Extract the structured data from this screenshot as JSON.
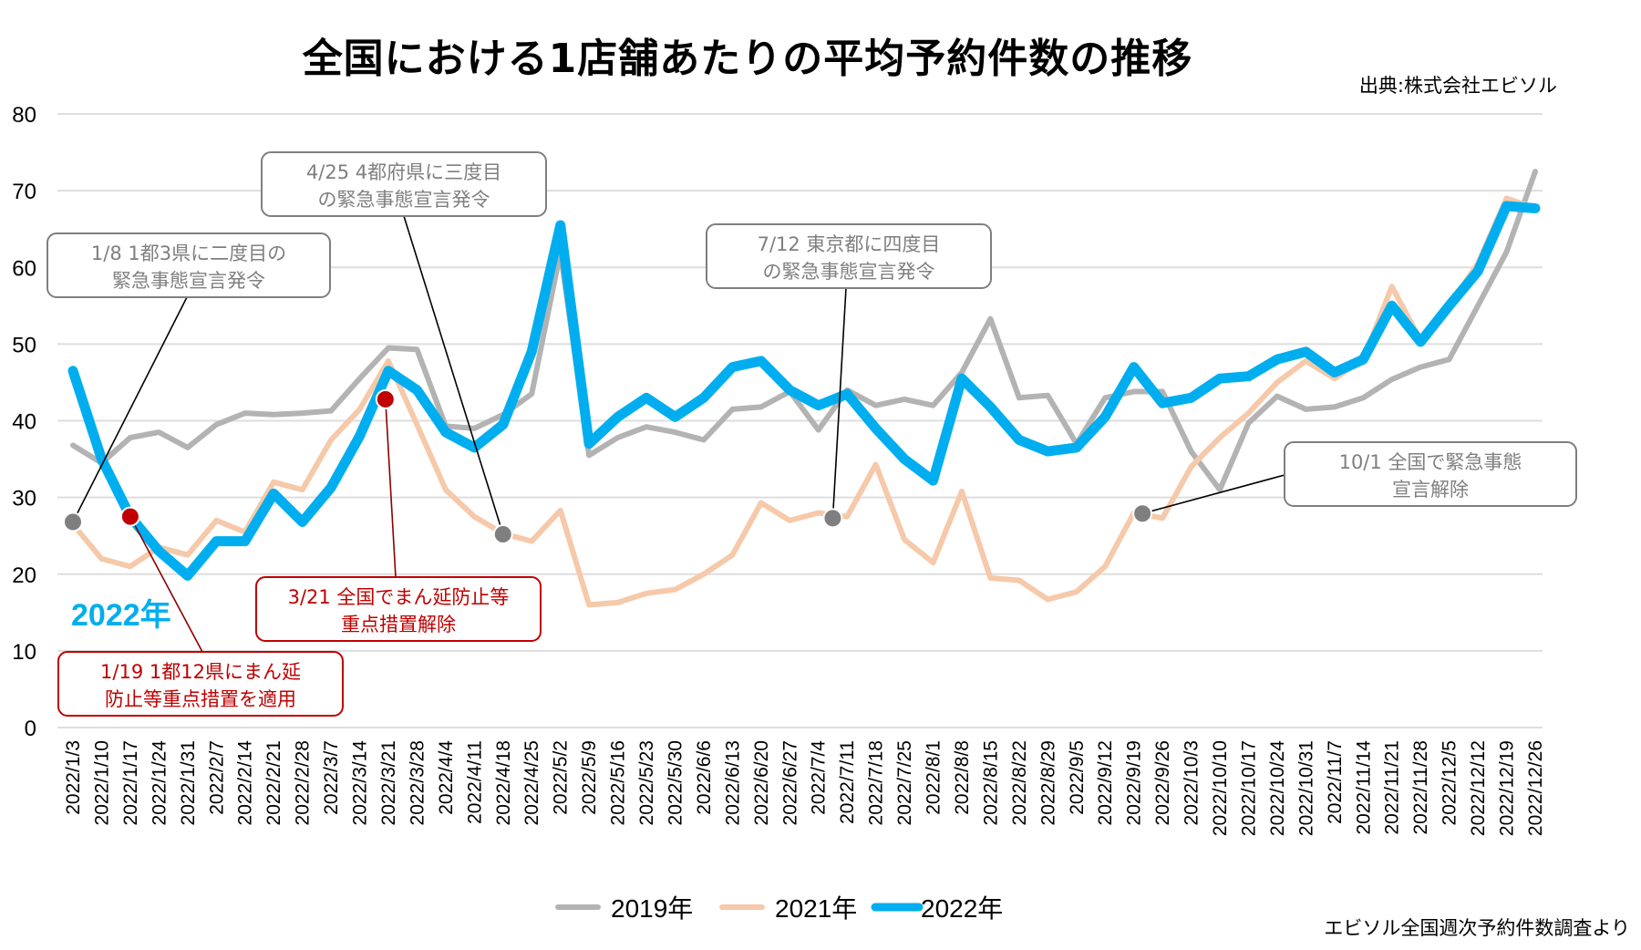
{
  "title": "全国における1店舗あたりの平均予約件数の推移",
  "source": "出典:株式会社エビソル",
  "footnote": "エビソル全国週次予約件数調査より",
  "colors": {
    "s2019": "#b3b3b3",
    "s2021": "#f5c9a9",
    "s2022": "#00aeef",
    "annotation_gray": "#7f7f7f",
    "annotation_red": "#c00000",
    "marker_gray": "#7f7f7f",
    "marker_red": "#c00000",
    "grid": "#dedede"
  },
  "chart_data": {
    "type": "line",
    "title": "全国における1店舗あたりの平均予約件数の推移",
    "xlabel": "",
    "ylabel": "",
    "ylim": [
      0,
      80
    ],
    "yticks": [
      0,
      10,
      20,
      30,
      40,
      50,
      60,
      70,
      80
    ],
    "grid": true,
    "legend_position": "bottom-center",
    "x": [
      "2022/1/3",
      "2022/1/10",
      "2022/1/17",
      "2022/1/24",
      "2022/1/31",
      "2022/2/7",
      "2022/2/14",
      "2022/2/21",
      "2022/2/28",
      "2022/3/7",
      "2022/3/14",
      "2022/3/21",
      "2022/3/28",
      "2022/4/4",
      "2022/4/11",
      "2022/4/18",
      "2022/4/25",
      "2022/5/2",
      "2022/5/9",
      "2022/5/16",
      "2022/5/23",
      "2022/5/30",
      "2022/6/6",
      "2022/6/13",
      "2022/6/20",
      "2022/6/27",
      "2022/7/4",
      "2022/7/11",
      "2022/7/18",
      "2022/7/25",
      "2022/8/1",
      "2022/8/8",
      "2022/8/15",
      "2022/8/22",
      "2022/8/29",
      "2022/9/5",
      "2022/9/12",
      "2022/9/19",
      "2022/9/26",
      "2022/10/3",
      "2022/10/10",
      "2022/10/17",
      "2022/10/24",
      "2022/10/31",
      "2022/11/7",
      "2022/11/14",
      "2022/11/21",
      "2022/11/28",
      "2022/12/5",
      "2022/12/12",
      "2022/12/19",
      "2022/12/26"
    ],
    "series": [
      {
        "name": "2019年",
        "key": "s2019",
        "values": [
          36.8,
          34.5,
          37.8,
          38.5,
          36.5,
          39.5,
          41,
          40.8,
          41,
          41.3,
          45.5,
          49.5,
          49.3,
          39.3,
          39,
          40.8,
          43.5,
          62,
          35.5,
          37.8,
          39.2,
          38.5,
          37.5,
          41.5,
          41.8,
          43.8,
          38.8,
          44,
          42,
          42.8,
          42,
          46.3,
          53.3,
          43,
          43.3,
          37,
          43,
          43.8,
          43.8,
          36,
          31,
          39.7,
          43.2,
          41.5,
          41.8,
          43,
          45.4,
          47,
          48,
          55,
          62,
          72.5
        ]
      },
      {
        "name": "2021年",
        "key": "s2021",
        "values": [
          26.5,
          22,
          21,
          23.5,
          22.5,
          27,
          25.5,
          32,
          31,
          37.5,
          41.5,
          47.8,
          39.5,
          31,
          27.5,
          25.3,
          24.3,
          28.3,
          16,
          16.3,
          17.5,
          18,
          20,
          22.5,
          29.3,
          27,
          28,
          27.5,
          34.3,
          24.5,
          21.5,
          30.8,
          19.5,
          19.2,
          16.7,
          17.7,
          21,
          28,
          27.3,
          34,
          37.8,
          41,
          45,
          47.8,
          45.5,
          48,
          57.5,
          50.5,
          55,
          60.5,
          69,
          67.7
        ]
      },
      {
        "name": "2022年",
        "key": "s2022",
        "values": [
          46.5,
          35,
          27.5,
          23,
          19.8,
          24.3,
          24.3,
          30.5,
          26.8,
          31.3,
          38,
          46.5,
          44,
          38.5,
          36.5,
          39.5,
          49,
          65.5,
          37,
          40.5,
          43,
          40.5,
          43,
          47,
          47.8,
          44,
          42,
          43.5,
          39,
          35,
          32.2,
          45.5,
          41.8,
          37.5,
          36,
          36.5,
          40.5,
          47,
          42.3,
          43,
          45.5,
          45.8,
          48,
          49,
          46.3,
          48,
          55,
          50.3,
          55,
          59.5,
          68,
          67.7
        ]
      }
    ],
    "series_label": "2022年",
    "annotations": [
      {
        "id": "a1",
        "style": "gray",
        "lines": [
          "1/8  1都3県に二度目の",
          "緊急事態宣言発令"
        ],
        "marker": {
          "index": 0,
          "value": 26.8,
          "color": "gray"
        }
      },
      {
        "id": "a2",
        "style": "red",
        "lines": [
          "1/19  1都12県にまん延",
          "防止等重点措置を適用"
        ],
        "marker": {
          "index": 2,
          "value": 27.5,
          "color": "red"
        }
      },
      {
        "id": "a3",
        "style": "red",
        "lines": [
          "3/21  全国でまん延防止等",
          "重点措置解除"
        ],
        "marker": {
          "index": 10.9,
          "value": 42.8,
          "color": "red"
        }
      },
      {
        "id": "a4",
        "style": "gray",
        "lines": [
          "4/25  4都府県に三度目",
          "の緊急事態宣言発令"
        ],
        "marker": {
          "index": 15,
          "value": 25.2,
          "color": "gray"
        }
      },
      {
        "id": "a5",
        "style": "gray",
        "lines": [
          "7/12  東京都に四度目",
          "の緊急事態宣言発令"
        ],
        "marker": {
          "index": 26.5,
          "value": 27.3,
          "color": "gray"
        }
      },
      {
        "id": "a6",
        "style": "gray",
        "lines": [
          "10/1  全国で緊急事態",
          "宣言解除"
        ],
        "marker": {
          "index": 37.3,
          "value": 27.9,
          "color": "gray"
        }
      }
    ]
  }
}
